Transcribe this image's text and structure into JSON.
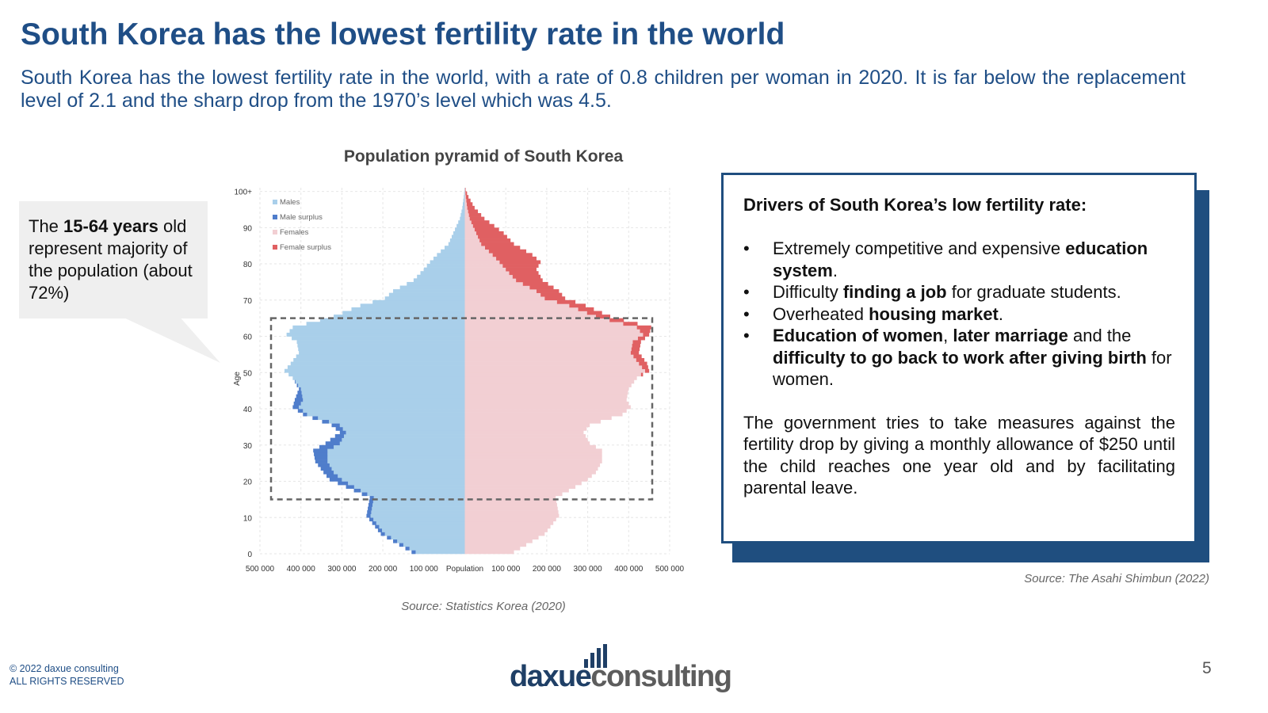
{
  "slide": {
    "title": "South Korea has the lowest fertility rate in the world",
    "subtitle": "South Korea has the lowest fertility rate in the world, with a rate of 0.8 children per woman in 2020. It is far below the replacement level of 2.1 and the sharp drop from the 1970’s level which was 4.5."
  },
  "callout": {
    "prefix": "The ",
    "bold": "15-64 years",
    "suffix": " old represent majority of the population (about 72%)"
  },
  "chart_data": {
    "type": "bar",
    "orientation": "horizontal-pyramid",
    "title": "Population pyramid of South Korea",
    "source": "Source: Statistics Korea (2020)",
    "xlabel": "Population",
    "ylabel": "Age",
    "xlim": [
      -500000,
      500000
    ],
    "ylim": [
      0,
      101
    ],
    "x_tick_labels": [
      "500 000",
      "400 000",
      "300 000",
      "200 000",
      "100 000",
      "Population",
      "100 000",
      "200 000",
      "300 000",
      "400 000",
      "500 000"
    ],
    "y_tick_labels": [
      "0",
      "10",
      "20",
      "30",
      "40",
      "50",
      "60",
      "70",
      "80",
      "90",
      "100+"
    ],
    "legend": [
      {
        "label": "Males",
        "color": "#a9cfea"
      },
      {
        "label": "Male surplus",
        "color": "#4f7dcb"
      },
      {
        "label": "Females",
        "color": "#f2cfd3"
      },
      {
        "label": "Female surplus",
        "color": "#e06062"
      }
    ],
    "highlight_range_ages": [
      15,
      64
    ],
    "age_points": [
      0,
      5,
      10,
      15,
      18,
      20,
      22,
      25,
      28,
      30,
      33,
      35,
      38,
      40,
      42,
      45,
      48,
      50,
      52,
      55,
      58,
      60,
      62,
      65,
      68,
      70,
      72,
      75,
      78,
      80,
      82,
      85,
      88,
      90,
      92,
      95,
      98,
      100
    ],
    "series": [
      {
        "name": "Males",
        "values": [
          130000,
          205000,
          240000,
          232000,
          290000,
          330000,
          345000,
          365000,
          370000,
          340000,
          305000,
          325000,
          395000,
          420000,
          415000,
          405000,
          420000,
          440000,
          425000,
          405000,
          410000,
          435000,
          420000,
          320000,
          255000,
          195000,
          175000,
          125000,
          100000,
          85000,
          68000,
          40000,
          28000,
          20000,
          12000,
          6000,
          2500,
          800
        ]
      },
      {
        "name": "Females",
        "values": [
          120000,
          195000,
          230000,
          222000,
          270000,
          300000,
          320000,
          335000,
          335000,
          305000,
          290000,
          305000,
          385000,
          405000,
          395000,
          400000,
          420000,
          450000,
          445000,
          425000,
          430000,
          450000,
          455000,
          355000,
          295000,
          245000,
          230000,
          190000,
          175000,
          185000,
          165000,
          120000,
          95000,
          72000,
          48000,
          24000,
          9000,
          2000
        ]
      }
    ]
  },
  "drivers": {
    "heading": "Drivers of South Korea’s low fertility rate:",
    "items": [
      {
        "a": "Extremely competitive and expensive ",
        "b": "education system",
        "c": "."
      },
      {
        "a": "Difficulty ",
        "b": "finding a job",
        "c": " for graduate students."
      },
      {
        "a": "Overheated ",
        "b": "housing market",
        "c": "."
      },
      {
        "b": "Education of women",
        "c": ", ",
        "b2": "later marriage",
        "d": " and the ",
        "b3": "difficulty to go back to work after giving birth",
        "e": " for women."
      }
    ],
    "bullet": "•",
    "paragraph": "The government tries to take measures against the fertility drop by giving a monthly allowance  of $250 until the child reaches one year old and by facilitating parental leave.",
    "source": "Source: The Asahi Shimbun (2022)"
  },
  "footer": {
    "copyright": "© 2022 daxue consulting",
    "rights": "ALL RIGHTS RESERVED",
    "page_number": "5",
    "logo_part1": "daxue",
    "logo_part2": "consulting"
  },
  "colors": {
    "brand": "#1f4e86",
    "males": "#a9cfea",
    "male_surplus": "#4f7dcb",
    "females": "#f2cfd3",
    "female_surplus": "#e06062"
  }
}
